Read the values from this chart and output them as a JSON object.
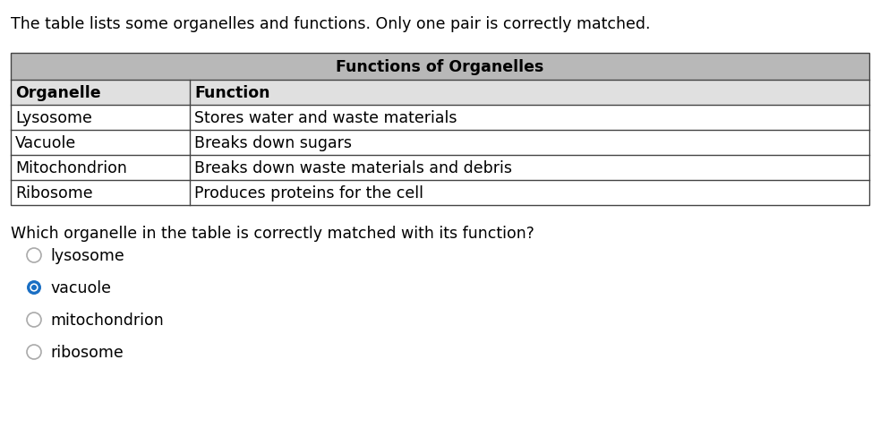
{
  "intro_text": "The table lists some organelles and functions. Only one pair is correctly matched.",
  "table_title": "Functions of Organelles",
  "col1_header": "Organelle",
  "col2_header": "Function",
  "rows": [
    [
      "Lysosome",
      "Stores water and waste materials"
    ],
    [
      "Vacuole",
      "Breaks down sugars"
    ],
    [
      "Mitochondrion",
      "Breaks down waste materials and debris"
    ],
    [
      "Ribosome",
      "Produces proteins for the cell"
    ]
  ],
  "question_text": "Which organelle in the table is correctly matched with its function?",
  "options": [
    "lysosome",
    "vacuole",
    "mitochondrion",
    "ribosome"
  ],
  "selected_option": 1,
  "bg_color": "#ffffff",
  "table_header_bg": "#b8b8b8",
  "table_subheader_bg": "#e0e0e0",
  "table_row_bg": "#ffffff",
  "table_border_color": "#444444",
  "text_color": "#000000",
  "radio_selected_color": "#1a6fc4",
  "radio_unselected_color": "#aaaaaa",
  "font_size_intro": 12.5,
  "font_size_table_title": 12.5,
  "font_size_table": 12.5,
  "font_size_question": 12.5,
  "font_size_options": 12.5
}
